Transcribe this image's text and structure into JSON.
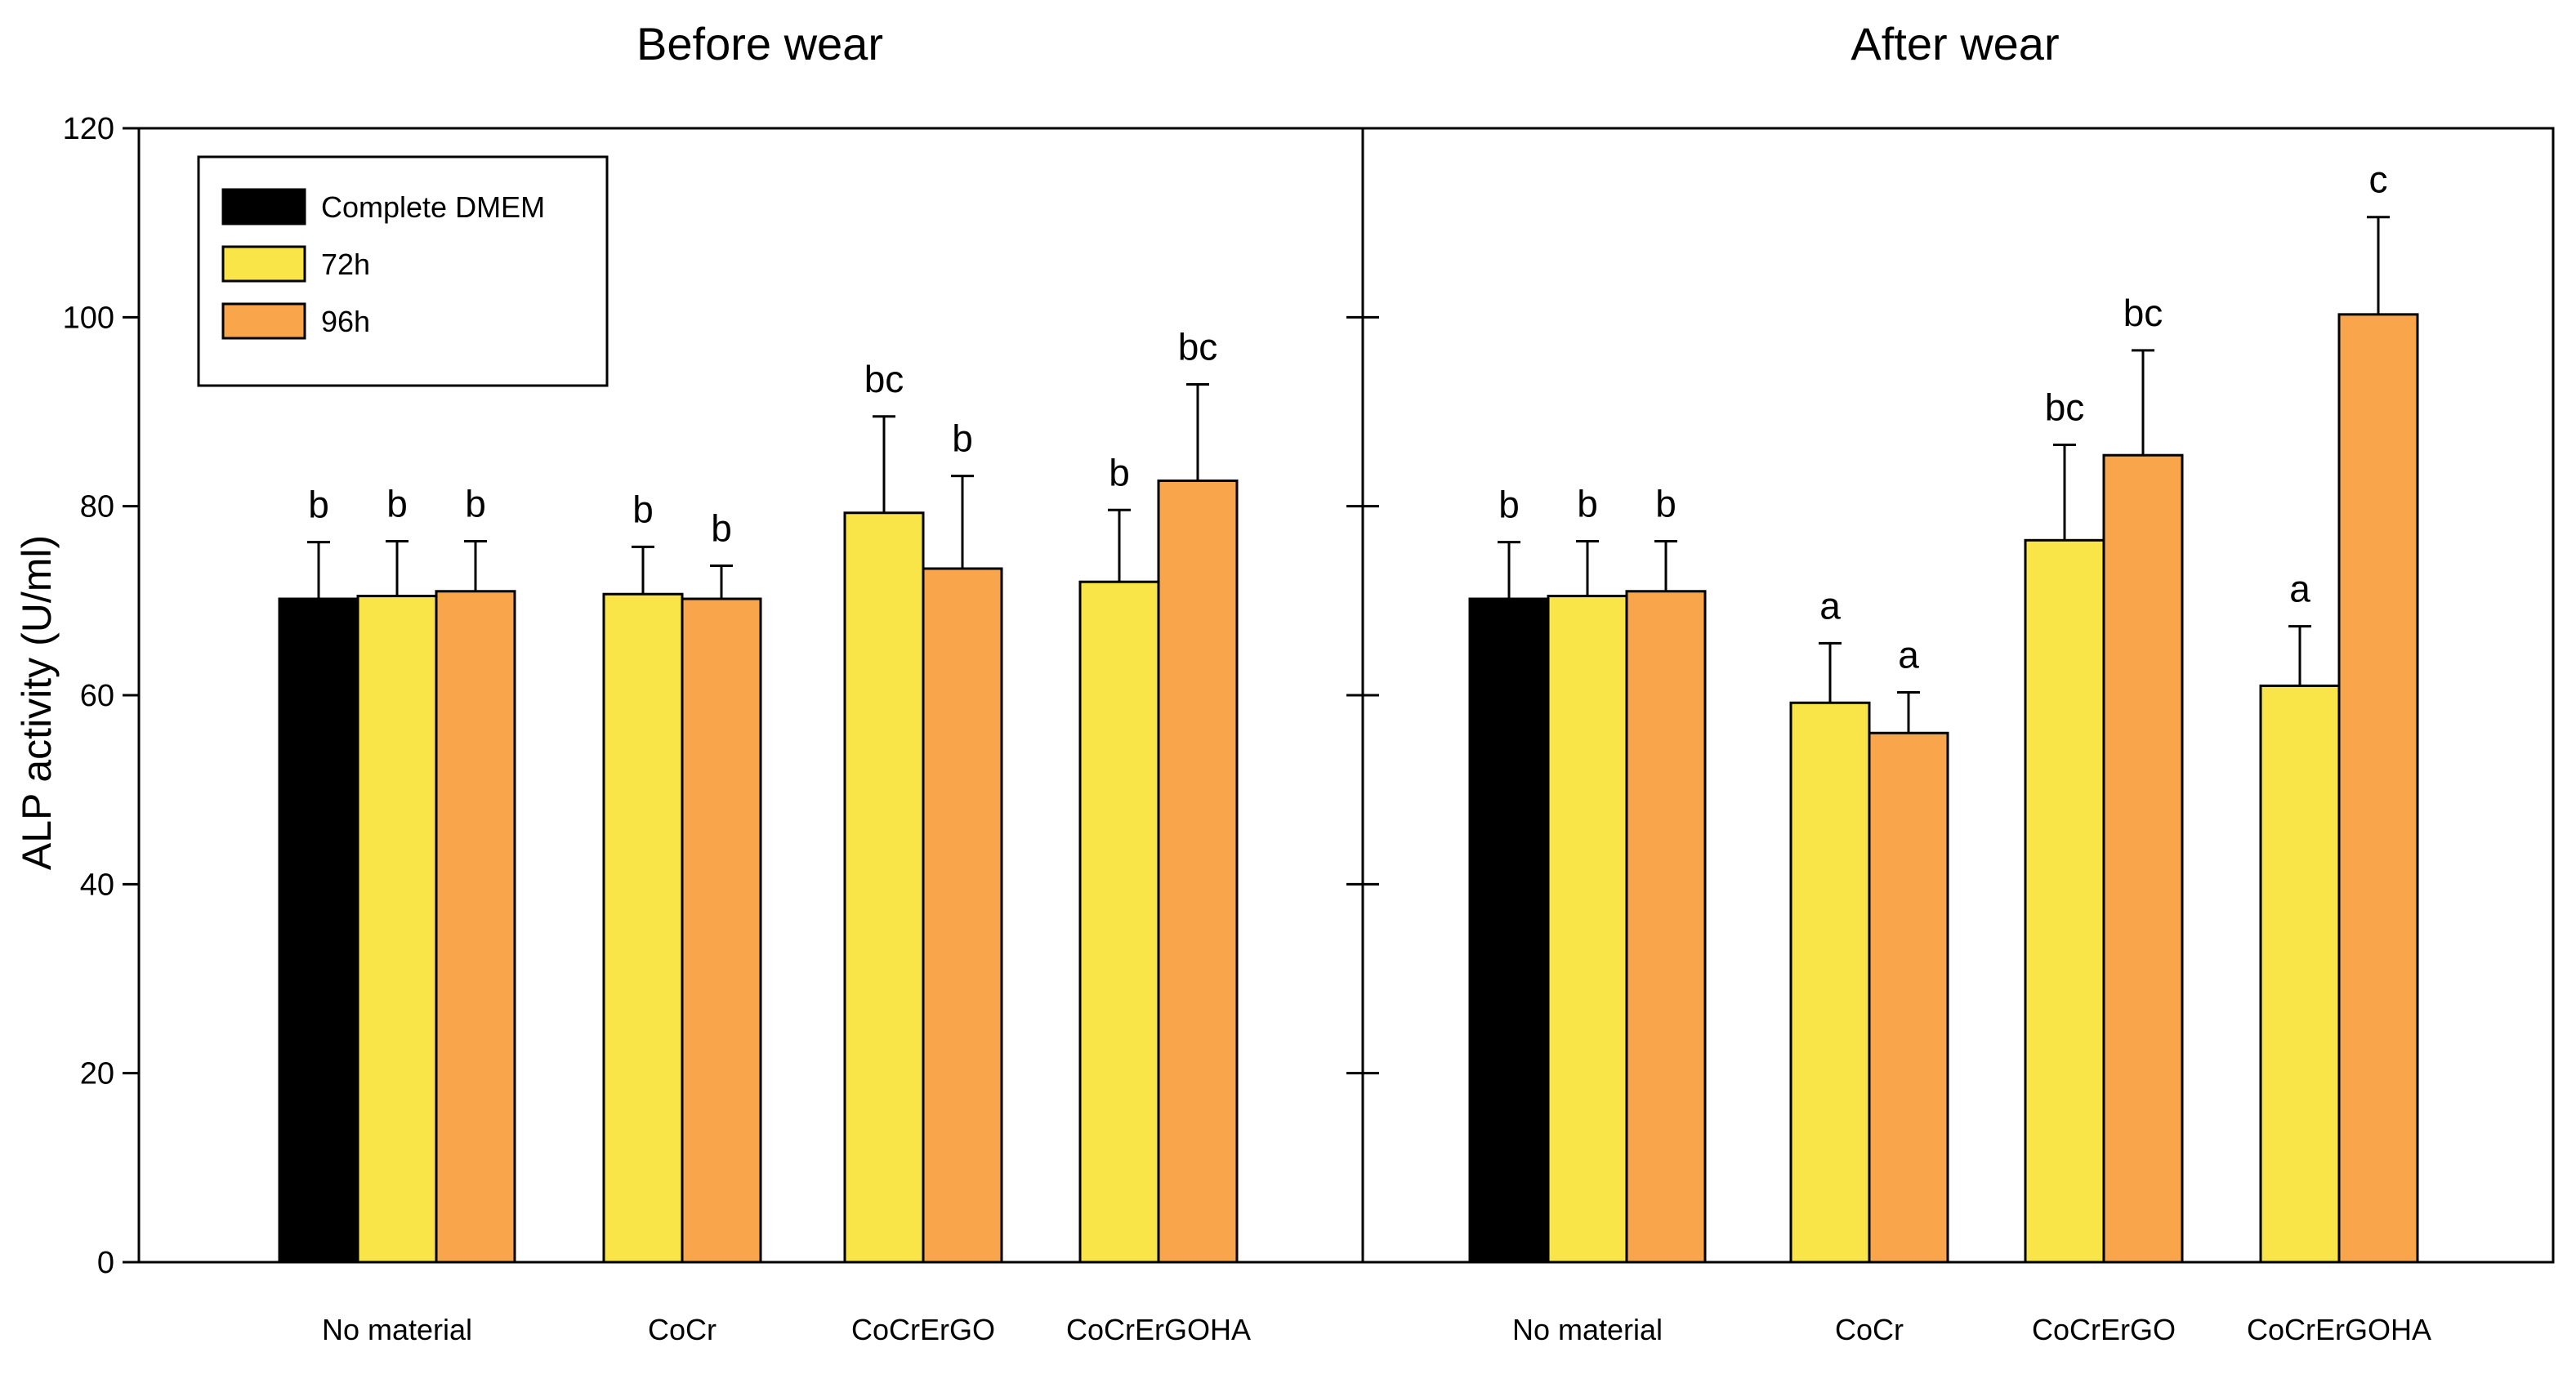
{
  "chart_data": {
    "type": "bar",
    "ylabel": "ALP activity (U/ml)",
    "ylim": [
      0,
      120
    ],
    "yticks": [
      0,
      20,
      40,
      60,
      80,
      100,
      120
    ],
    "legend": {
      "position": "top-left",
      "entries": [
        {
          "name": "Complete DMEM",
          "color": "#000000"
        },
        {
          "name": "72h",
          "color": "#F9E547"
        },
        {
          "name": "96h",
          "color": "#F9A54C"
        }
      ]
    },
    "panels": [
      {
        "title": "Before wear",
        "groups": [
          {
            "category": "No material",
            "bars": [
              {
                "series": "Complete DMEM",
                "value": 70.2,
                "error": 6.0,
                "label": "b"
              },
              {
                "series": "72h",
                "value": 70.5,
                "error": 5.8,
                "label": "b"
              },
              {
                "series": "96h",
                "value": 71.0,
                "error": 5.3,
                "label": "b"
              }
            ]
          },
          {
            "category": "CoCr",
            "bars": [
              {
                "series": "72h",
                "value": 70.7,
                "error": 5.0,
                "label": "b"
              },
              {
                "series": "96h",
                "value": 70.2,
                "error": 3.5,
                "label": "b"
              }
            ]
          },
          {
            "category": "CoCrErGO",
            "bars": [
              {
                "series": "72h",
                "value": 79.3,
                "error": 10.2,
                "label": "bc"
              },
              {
                "series": "96h",
                "value": 73.4,
                "error": 9.8,
                "label": "b"
              }
            ]
          },
          {
            "category": "CoCrErGOHA",
            "bars": [
              {
                "series": "72h",
                "value": 72.0,
                "error": 7.6,
                "label": "b"
              },
              {
                "series": "96h",
                "value": 82.7,
                "error": 10.2,
                "label": "bc"
              }
            ]
          }
        ]
      },
      {
        "title": "After wear",
        "groups": [
          {
            "category": "No material",
            "bars": [
              {
                "series": "Complete DMEM",
                "value": 70.2,
                "error": 6.0,
                "label": "b"
              },
              {
                "series": "72h",
                "value": 70.5,
                "error": 5.8,
                "label": "b"
              },
              {
                "series": "96h",
                "value": 71.0,
                "error": 5.3,
                "label": "b"
              }
            ]
          },
          {
            "category": "CoCr",
            "bars": [
              {
                "series": "72h",
                "value": 59.2,
                "error": 6.3,
                "label": "a"
              },
              {
                "series": "96h",
                "value": 56.0,
                "error": 4.3,
                "label": "a"
              }
            ]
          },
          {
            "category": "CoCrErGO",
            "bars": [
              {
                "series": "72h",
                "value": 76.4,
                "error": 10.1,
                "label": "bc"
              },
              {
                "series": "96h",
                "value": 85.4,
                "error": 11.1,
                "label": "bc"
              }
            ]
          },
          {
            "category": "CoCrErGOHA",
            "bars": [
              {
                "series": "72h",
                "value": 61.0,
                "error": 6.3,
                "label": "a"
              },
              {
                "series": "96h",
                "value": 100.3,
                "error": 10.3,
                "label": "c"
              }
            ]
          }
        ]
      }
    ]
  }
}
